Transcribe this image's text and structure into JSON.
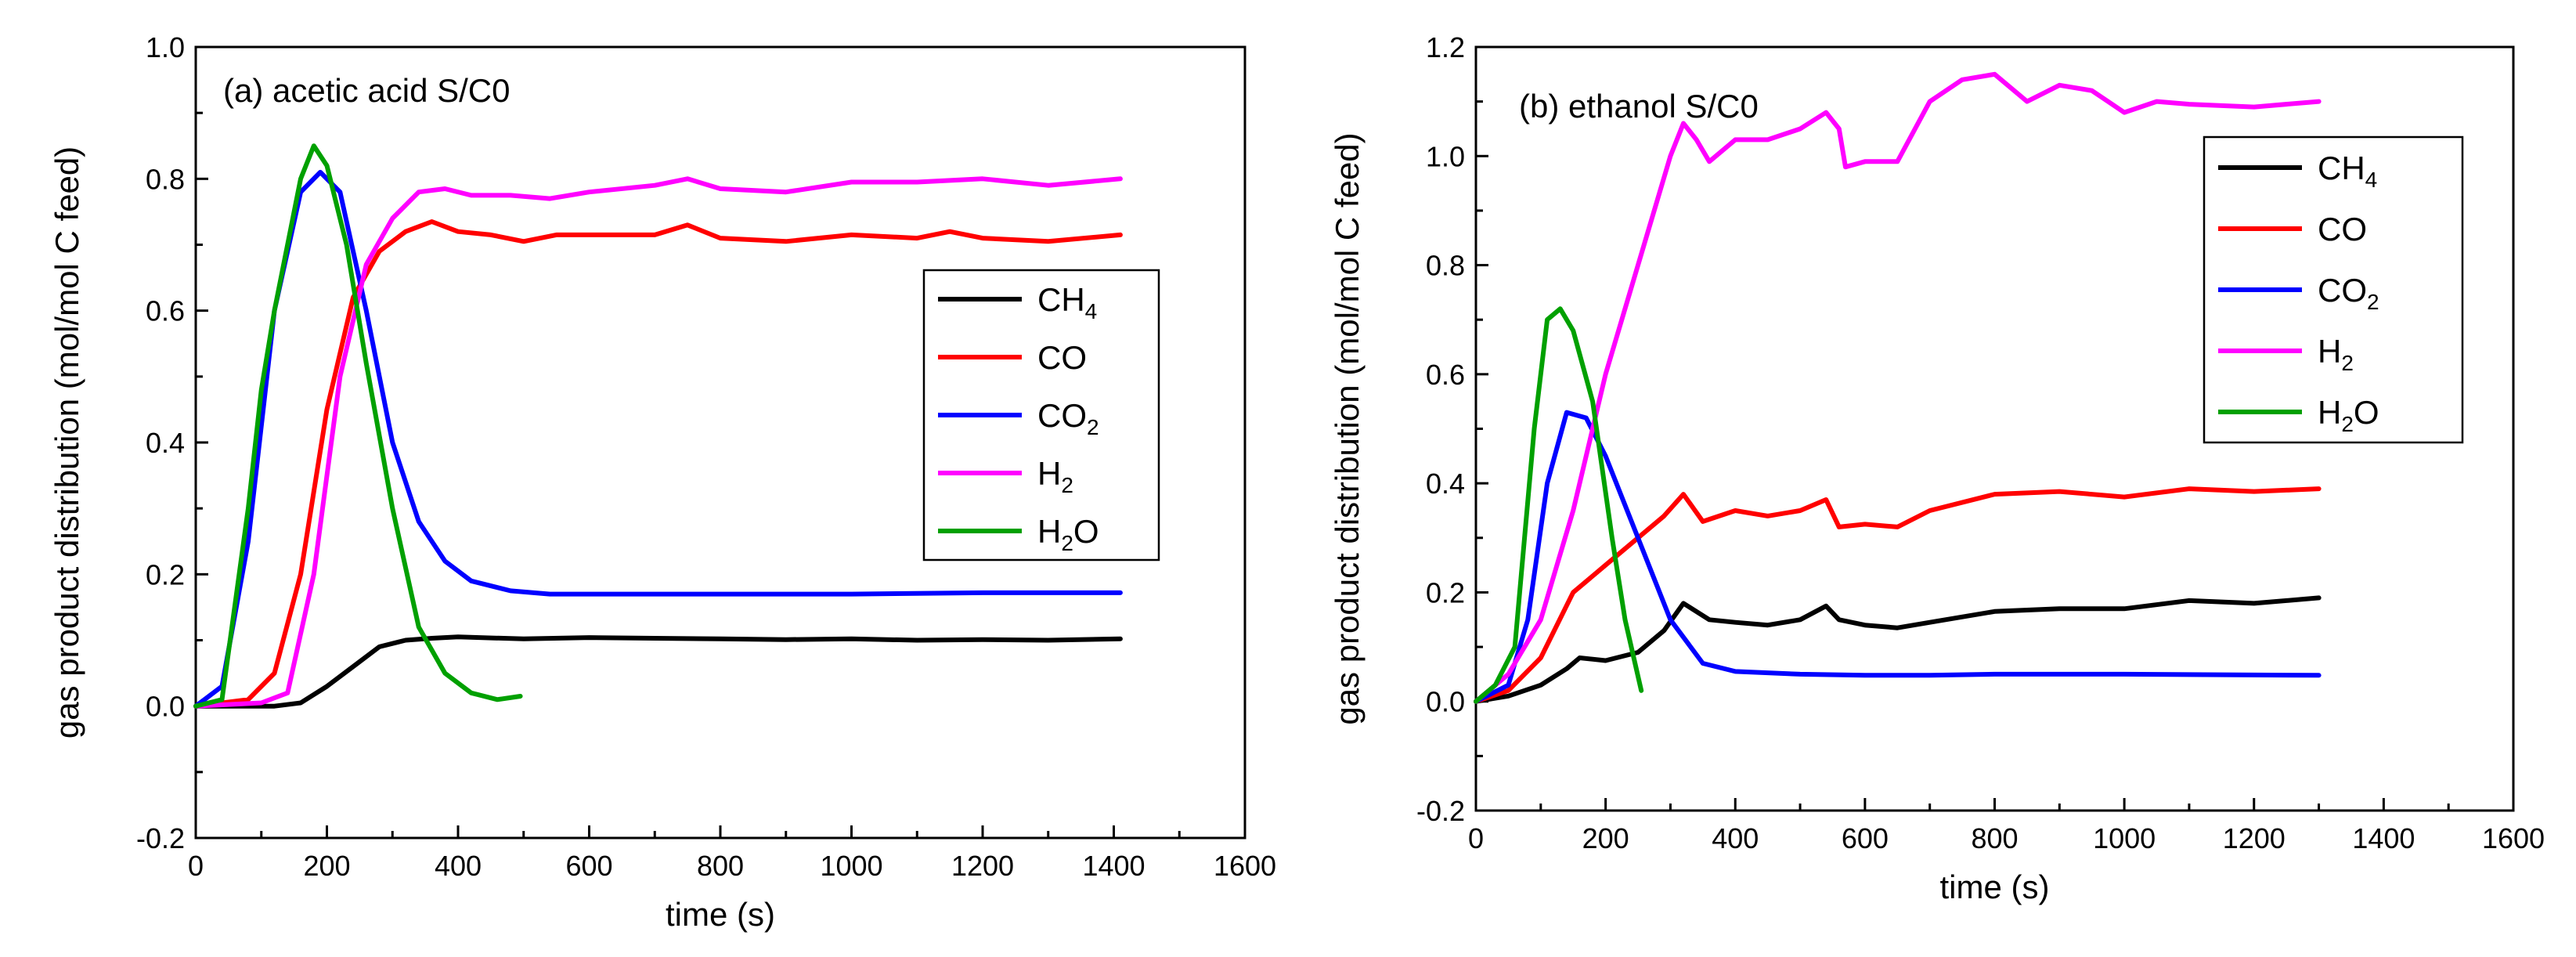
{
  "chart_data": [
    {
      "type": "line",
      "title": "(a)  acetic acid S/C0",
      "xlabel": "time (s)",
      "ylabel": "gas product distribution (mol/mol C feed)",
      "xlim": [
        0,
        1600
      ],
      "ylim": [
        -0.2,
        1.0
      ],
      "xticks": [
        "0",
        "200",
        "400",
        "600",
        "800",
        "1000",
        "1200",
        "1400",
        "1600"
      ],
      "yticks": [
        "-0.2",
        "0.0",
        "0.2",
        "0.4",
        "0.6",
        "0.8",
        "1.0"
      ],
      "legend_position": "right",
      "series": [
        {
          "name": "CH",
          "sub": "4",
          "color": "#000000",
          "x": [
            0,
            120,
            160,
            200,
            240,
            280,
            320,
            360,
            400,
            500,
            600,
            700,
            800,
            900,
            1000,
            1100,
            1200,
            1300,
            1410
          ],
          "y": [
            0.0,
            0.0,
            0.005,
            0.03,
            0.06,
            0.09,
            0.1,
            0.103,
            0.105,
            0.102,
            0.104,
            0.103,
            0.102,
            0.101,
            0.102,
            0.1,
            0.101,
            0.1,
            0.102
          ]
        },
        {
          "name": "CO",
          "sub": "",
          "color": "#ff0000",
          "x": [
            0,
            80,
            120,
            160,
            200,
            240,
            280,
            320,
            360,
            400,
            450,
            500,
            550,
            600,
            700,
            750,
            800,
            900,
            1000,
            1100,
            1150,
            1200,
            1300,
            1410
          ],
          "y": [
            0.0,
            0.01,
            0.05,
            0.2,
            0.45,
            0.62,
            0.69,
            0.72,
            0.735,
            0.72,
            0.715,
            0.705,
            0.715,
            0.715,
            0.715,
            0.73,
            0.71,
            0.705,
            0.715,
            0.71,
            0.72,
            0.71,
            0.705,
            0.715
          ]
        },
        {
          "name": "CO",
          "sub": "2",
          "color": "#0000ff",
          "x": [
            0,
            40,
            80,
            120,
            160,
            190,
            220,
            260,
            300,
            340,
            380,
            420,
            480,
            540,
            600,
            800,
            1000,
            1200,
            1410
          ],
          "y": [
            0.0,
            0.03,
            0.25,
            0.6,
            0.78,
            0.81,
            0.78,
            0.6,
            0.4,
            0.28,
            0.22,
            0.19,
            0.175,
            0.17,
            0.17,
            0.17,
            0.17,
            0.172,
            0.172
          ]
        },
        {
          "name": "H",
          "sub": "2",
          "color": "#ff00ff",
          "x": [
            0,
            100,
            140,
            180,
            220,
            260,
            300,
            340,
            380,
            420,
            480,
            540,
            600,
            700,
            750,
            800,
            900,
            1000,
            1100,
            1200,
            1300,
            1410
          ],
          "y": [
            0.0,
            0.005,
            0.02,
            0.2,
            0.5,
            0.67,
            0.74,
            0.78,
            0.785,
            0.775,
            0.775,
            0.77,
            0.78,
            0.79,
            0.8,
            0.785,
            0.78,
            0.795,
            0.795,
            0.8,
            0.79,
            0.8
          ]
        },
        {
          "name": "H",
          "sub": "2O",
          "color": "#00a000",
          "x": [
            0,
            40,
            80,
            100,
            120,
            160,
            180,
            200,
            230,
            260,
            300,
            340,
            380,
            420,
            460,
            495
          ],
          "y": [
            0.0,
            0.01,
            0.3,
            0.48,
            0.6,
            0.8,
            0.85,
            0.82,
            0.7,
            0.52,
            0.3,
            0.12,
            0.05,
            0.02,
            0.01,
            0.015
          ]
        }
      ]
    },
    {
      "type": "line",
      "title": "(b)     ethanol S/C0",
      "xlabel": "time (s)",
      "ylabel": "gas product distribution (mol/mol C feed)",
      "xlim": [
        0,
        1600
      ],
      "ylim": [
        -0.2,
        1.2
      ],
      "xticks": [
        "0",
        "200",
        "400",
        "600",
        "800",
        "1000",
        "1200",
        "1400",
        "1600"
      ],
      "yticks": [
        "-0.2",
        "0.0",
        "0.2",
        "0.4",
        "0.6",
        "0.8",
        "1.0",
        "1.2"
      ],
      "legend_position": "right",
      "series": [
        {
          "name": "CH",
          "sub": "4",
          "color": "#000000",
          "x": [
            0,
            50,
            100,
            140,
            160,
            200,
            250,
            290,
            320,
            360,
            400,
            450,
            500,
            540,
            560,
            600,
            650,
            700,
            800,
            900,
            1000,
            1100,
            1200,
            1300
          ],
          "y": [
            0.0,
            0.01,
            0.03,
            0.06,
            0.08,
            0.075,
            0.09,
            0.13,
            0.18,
            0.15,
            0.145,
            0.14,
            0.15,
            0.175,
            0.15,
            0.14,
            0.135,
            0.145,
            0.165,
            0.17,
            0.17,
            0.185,
            0.18,
            0.19
          ]
        },
        {
          "name": "CO",
          "sub": "",
          "color": "#ff0000",
          "x": [
            0,
            50,
            100,
            150,
            200,
            250,
            290,
            320,
            350,
            400,
            450,
            500,
            540,
            560,
            600,
            650,
            700,
            800,
            900,
            1000,
            1100,
            1200,
            1300
          ],
          "y": [
            0.0,
            0.02,
            0.08,
            0.2,
            0.25,
            0.3,
            0.34,
            0.38,
            0.33,
            0.35,
            0.34,
            0.35,
            0.37,
            0.32,
            0.325,
            0.32,
            0.35,
            0.38,
            0.385,
            0.375,
            0.39,
            0.385,
            0.39
          ]
        },
        {
          "name": "CO",
          "sub": "2",
          "color": "#0000ff",
          "x": [
            0,
            50,
            80,
            110,
            140,
            170,
            200,
            250,
            300,
            350,
            400,
            500,
            600,
            700,
            800,
            1000,
            1300
          ],
          "y": [
            0.0,
            0.03,
            0.15,
            0.4,
            0.53,
            0.52,
            0.45,
            0.3,
            0.15,
            0.07,
            0.055,
            0.05,
            0.048,
            0.048,
            0.05,
            0.05,
            0.048
          ]
        },
        {
          "name": "H",
          "sub": "2",
          "color": "#ff00ff",
          "x": [
            0,
            50,
            100,
            150,
            200,
            250,
            300,
            320,
            340,
            360,
            400,
            450,
            500,
            540,
            560,
            570,
            600,
            650,
            700,
            750,
            800,
            850,
            900,
            950,
            1000,
            1050,
            1100,
            1200,
            1300
          ],
          "y": [
            0.0,
            0.05,
            0.15,
            0.35,
            0.6,
            0.8,
            1.0,
            1.06,
            1.03,
            0.99,
            1.03,
            1.03,
            1.05,
            1.08,
            1.05,
            0.98,
            0.99,
            0.99,
            1.1,
            1.14,
            1.15,
            1.1,
            1.13,
            1.12,
            1.08,
            1.1,
            1.095,
            1.09,
            1.1
          ]
        },
        {
          "name": "H",
          "sub": "2O",
          "color": "#00a000",
          "x": [
            0,
            30,
            60,
            90,
            110,
            130,
            150,
            180,
            210,
            230,
            255
          ],
          "y": [
            0.0,
            0.03,
            0.1,
            0.5,
            0.7,
            0.72,
            0.68,
            0.55,
            0.3,
            0.15,
            0.02
          ]
        }
      ]
    }
  ]
}
